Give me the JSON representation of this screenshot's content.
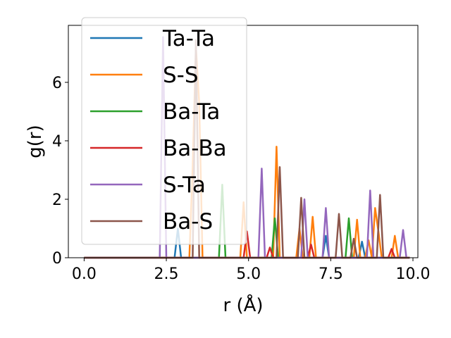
{
  "chart_data": {
    "type": "line",
    "title": "",
    "xlabel": "r (Å)",
    "ylabel": "g(r)",
    "xlim": [
      -0.48,
      10.15
    ],
    "ylim": [
      0,
      7.95
    ],
    "xticks": [
      0.0,
      2.5,
      5.0,
      7.5,
      10.0
    ],
    "xtick_labels": [
      "0.0",
      "2.5",
      "5.0",
      "7.5",
      "10.0"
    ],
    "yticks": [
      0,
      2,
      4,
      6
    ],
    "ytick_labels": [
      "0",
      "2",
      "4",
      "6"
    ],
    "grid": false,
    "legend_position": "upper-left",
    "series": [
      {
        "name": "Ta-Ta",
        "color": "#1f77b4",
        "x": [
          0,
          2.75,
          2.85,
          2.95,
          7.25,
          7.35,
          7.45,
          8.35,
          8.45,
          8.55,
          9.9
        ],
        "y": [
          0,
          0,
          1.0,
          0,
          0,
          0.75,
          0,
          0,
          0.55,
          0,
          0
        ]
      },
      {
        "name": "S-S",
        "color": "#ff7f0e",
        "x": [
          0,
          3.2,
          3.3,
          3.4,
          3.5,
          3.6,
          4.75,
          4.85,
          4.95,
          5.75,
          5.85,
          5.95,
          6.45,
          6.55,
          6.65,
          6.85,
          6.95,
          7.05,
          8.2,
          8.3,
          8.4,
          8.55,
          8.65,
          8.75,
          8.85,
          8.95,
          9.05,
          9.35,
          9.45,
          9.55,
          9.9
        ],
        "y": [
          0,
          0,
          3.1,
          7.2,
          5.3,
          0,
          0,
          1.9,
          0,
          0,
          3.8,
          0,
          0,
          1.0,
          0,
          0,
          1.4,
          0,
          0,
          1.3,
          0,
          0,
          0.6,
          0,
          1.7,
          0.9,
          0,
          0,
          0.75,
          0,
          0
        ]
      },
      {
        "name": "Ba-Ta",
        "color": "#2ca02c",
        "x": [
          0,
          4.1,
          4.2,
          4.3,
          5.7,
          5.8,
          5.9,
          7.95,
          8.05,
          8.15,
          9.9
        ],
        "y": [
          0,
          0,
          2.5,
          0,
          0,
          1.35,
          0,
          0,
          1.35,
          0,
          0
        ]
      },
      {
        "name": "Ba-Ba",
        "color": "#d62728",
        "x": [
          0,
          4.85,
          4.95,
          5.05,
          5.55,
          5.65,
          5.75,
          6.8,
          6.9,
          7.0,
          9.25,
          9.35,
          9.45,
          9.9
        ],
        "y": [
          0,
          0,
          0.9,
          0,
          0,
          0.35,
          0,
          0,
          0.45,
          0,
          0,
          0.3,
          0,
          0
        ]
      },
      {
        "name": "S-Ta",
        "color": "#9467bd",
        "x": [
          0,
          2.3,
          2.4,
          2.5,
          5.3,
          5.4,
          5.5,
          6.6,
          6.7,
          6.8,
          7.25,
          7.35,
          7.45,
          8.6,
          8.7,
          8.8,
          9.6,
          9.7,
          9.8,
          9.9
        ],
        "y": [
          0,
          0,
          7.55,
          0,
          0,
          3.05,
          0,
          0,
          2.0,
          0,
          0,
          1.7,
          0,
          0,
          2.3,
          0,
          0,
          0.95,
          0,
          0
        ]
      },
      {
        "name": "Ba-S",
        "color": "#8c564b",
        "x": [
          0,
          3.3,
          3.4,
          3.5,
          5.85,
          5.95,
          6.05,
          6.5,
          6.6,
          6.7,
          7.65,
          7.75,
          7.85,
          8.1,
          8.2,
          8.3,
          8.9,
          9.0,
          9.1,
          9.9
        ],
        "y": [
          0,
          0,
          7.45,
          0,
          0,
          3.1,
          0,
          0,
          2.05,
          0,
          0,
          1.5,
          0,
          0,
          0.65,
          0,
          0,
          2.15,
          0,
          0
        ]
      }
    ]
  }
}
